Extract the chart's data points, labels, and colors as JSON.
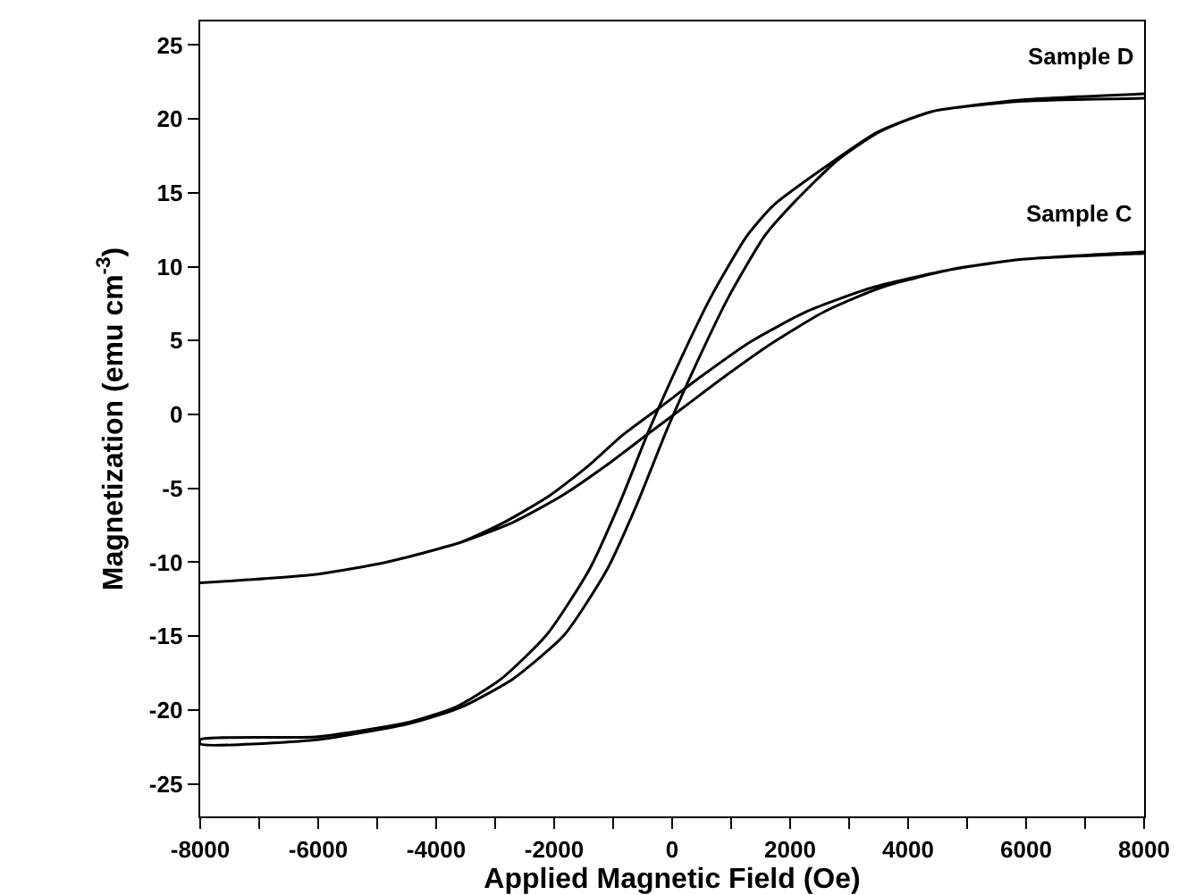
{
  "chart_data": {
    "type": "line",
    "xlabel": "Applied Magnetic Field (Oe)",
    "ylabel": "Magnetization (emu cm$^{-3}$)",
    "xlim": [
      -8000,
      8000
    ],
    "ylim": [
      -27.2,
      26.6
    ],
    "xticks": [
      -8000,
      {
        "value": -7000,
        "label": null
      },
      -6000,
      {
        "value": -5000,
        "label": null
      },
      -4000,
      {
        "value": -3000,
        "label": null
      },
      -2000,
      {
        "value": -1000,
        "label": null
      },
      0,
      {
        "value": 1000,
        "label": null
      },
      2000,
      {
        "value": 3000,
        "label": null
      },
      4000,
      {
        "value": 5000,
        "label": null
      },
      6000,
      {
        "value": 7000,
        "label": null
      },
      8000
    ],
    "yticks": [
      -25,
      -20,
      -15,
      -10,
      -5,
      0,
      5,
      10,
      15,
      20,
      25
    ],
    "grid": false,
    "legend": false,
    "marker": "none",
    "line_style": "solid",
    "series": [
      {
        "name": "Sample D",
        "color": "#000000",
        "x": [
          8000,
          5940,
          4400,
          3475,
          2755,
          1730,
          1270,
          650,
          140,
          -375,
          -890,
          -1405,
          -2125,
          -2900,
          -3670,
          -4440,
          -6000,
          -8000,
          -8000,
          -6000,
          -4440,
          -3570,
          -2700,
          -1825,
          -1105,
          -590,
          -75,
          440,
          950,
          1570,
          2030,
          2800,
          3500,
          4400,
          5940,
          8000
        ],
        "values": [
          21.7,
          21.3,
          20.5,
          19.1,
          17.2,
          14.2,
          12.1,
          7.9,
          3.7,
          -0.9,
          -6.0,
          -10.5,
          -14.9,
          -17.9,
          -19.8,
          -20.8,
          -21.8,
          -22.0,
          -22.3,
          -22.0,
          -20.9,
          -19.8,
          -17.9,
          -14.9,
          -10.5,
          -6.0,
          -0.9,
          3.7,
          7.9,
          12.1,
          14.2,
          17.2,
          19.1,
          20.5,
          21.2,
          21.4
        ]
      },
      {
        "name": "Sample C",
        "color": "#000000",
        "x": [
          8000,
          5940,
          4710,
          3400,
          2300,
          1320,
          500,
          -200,
          -840,
          -1400,
          -2080,
          -2850,
          -3620,
          -4850,
          -6000,
          -8000,
          -6000,
          -4850,
          -3620,
          -2700,
          -1870,
          -1100,
          -440,
          200,
          900,
          1720,
          2600,
          3550,
          4710,
          5940,
          8000
        ],
        "values": [
          11.0,
          10.5,
          9.8,
          8.6,
          7.0,
          4.9,
          2.6,
          0.5,
          -1.4,
          -3.4,
          -5.5,
          -7.3,
          -8.7,
          -10.0,
          -10.8,
          -11.4,
          -10.8,
          -10.0,
          -8.7,
          -7.3,
          -5.5,
          -3.4,
          -1.4,
          0.5,
          2.6,
          4.9,
          7.0,
          8.6,
          9.8,
          10.5,
          10.9
        ]
      }
    ]
  }
}
